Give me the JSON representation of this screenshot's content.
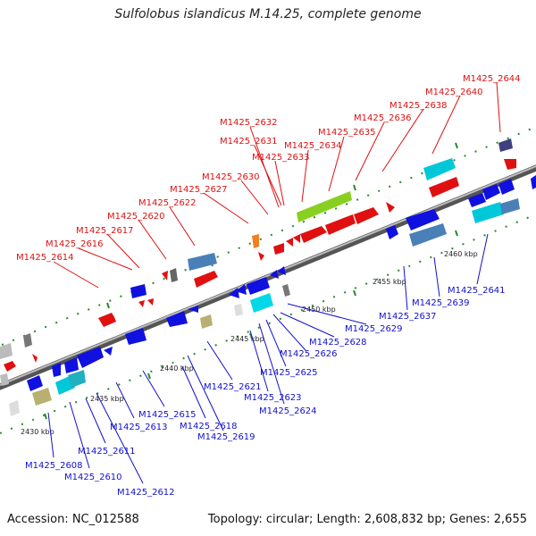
{
  "title": "Sulfolobus islandicus M.14.25, complete genome",
  "footer": {
    "accession": "Accession: NC_012588",
    "topology": "Topology: circular; Length: 2,608,832 bp; Genes: 2,655"
  },
  "colors": {
    "forward_label": "#dd1111",
    "reverse_label": "#1111cc",
    "backbone": "#8a8a8a",
    "tick": "#2a8a2a"
  },
  "scale_ticks": [
    "2430 kbp",
    "2435 kbp",
    "2440 kbp",
    "2445 kbp",
    "2450 kbp",
    "2455 kbp",
    "2460 kbp"
  ],
  "forward_labels": [
    "M1425_2614",
    "M1425_2616",
    "M1425_2617",
    "M1425_2620",
    "M1425_2622",
    "M1425_2627",
    "M1425_2630",
    "M1425_2633",
    "M1425_2631",
    "M1425_2632",
    "M1425_2634",
    "M1425_2635",
    "M1425_2636",
    "M1425_2638",
    "M1425_2640",
    "M1425_2644"
  ],
  "reverse_labels": [
    "M1425_2608",
    "M1425_2610",
    "M1425_2611",
    "M1425_2612",
    "M1425_2613",
    "M1425_2615",
    "M1425_2618",
    "M1425_2619",
    "M1425_2621",
    "M1425_2623",
    "M1425_2624",
    "M1425_2625",
    "M1425_2626",
    "M1425_2628",
    "M1425_2629",
    "M1425_2637",
    "M1425_2639",
    "M1425_2641"
  ]
}
